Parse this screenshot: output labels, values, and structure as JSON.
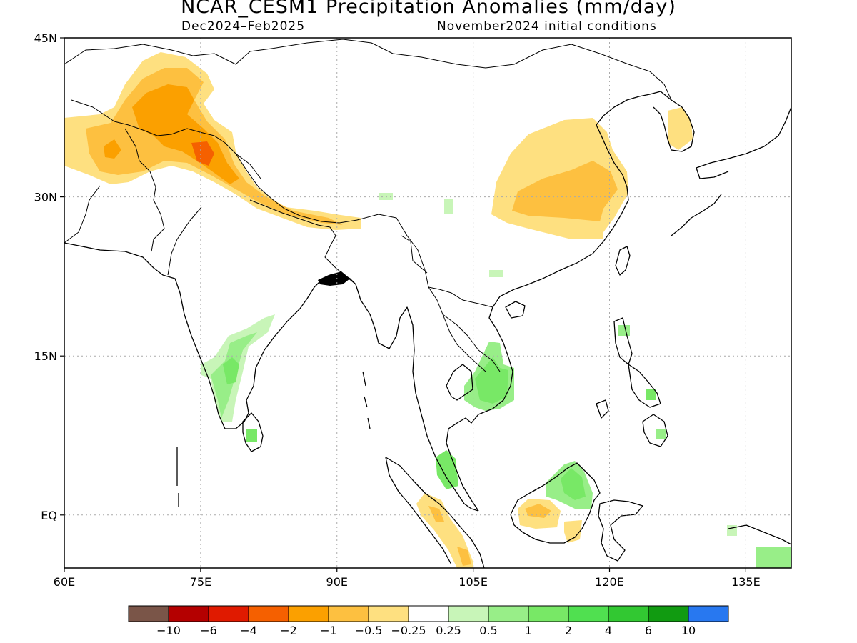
{
  "title": "NCAR_CESM1 Precipitation Anomalies (mm/day)",
  "subtitle_left": "Dec2024–Feb2025",
  "subtitle_right": "November2024 initial conditions",
  "map": {
    "lon_range": [
      60,
      140
    ],
    "lat_range": [
      -5,
      45
    ],
    "lon_ticks": [
      {
        "value": 60,
        "label": "60E"
      },
      {
        "value": 75,
        "label": "75E"
      },
      {
        "value": 90,
        "label": "90E"
      },
      {
        "value": 105,
        "label": "105E"
      },
      {
        "value": 120,
        "label": "120E"
      },
      {
        "value": 135,
        "label": "135E"
      }
    ],
    "lat_ticks": [
      {
        "value": 45,
        "label": "45N"
      },
      {
        "value": 30,
        "label": "30N"
      },
      {
        "value": 15,
        "label": "15N"
      },
      {
        "value": 0,
        "label": "EQ"
      }
    ],
    "grid": "dotted"
  },
  "colorbar": {
    "colors": [
      "#7a5548",
      "#b40000",
      "#e01a00",
      "#f56000",
      "#fba000",
      "#fdc040",
      "#fee080",
      "#ffffff",
      "#c8f5b8",
      "#98ee88",
      "#78e866",
      "#50e050",
      "#32c832",
      "#119b11",
      "#2878f0"
    ],
    "labels": [
      "−10",
      "−6",
      "−4",
      "−2",
      "−1",
      "−0.5",
      "−0.25",
      "0.25",
      "0.5",
      "1",
      "2",
      "4",
      "6",
      "10"
    ]
  }
}
